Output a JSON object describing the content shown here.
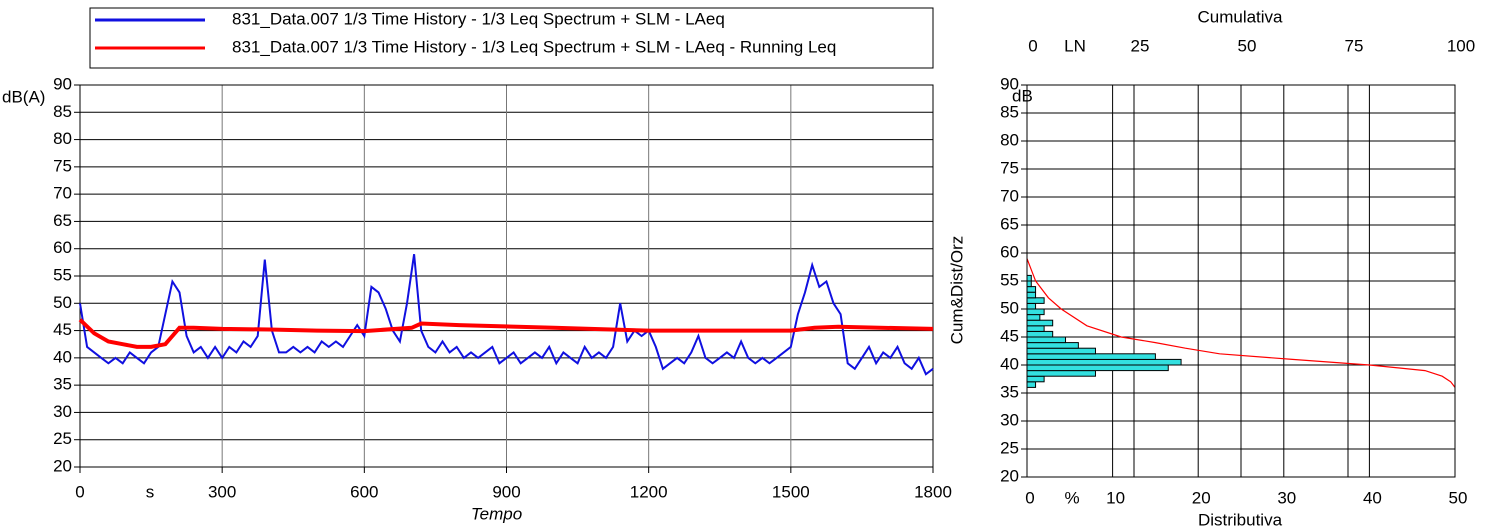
{
  "chart_data": [
    {
      "type": "line",
      "x_label": "Tempo",
      "x_unit": "s",
      "y_unit": "dB(A)",
      "xlim": [
        0,
        1800
      ],
      "xticks": [
        0,
        300,
        600,
        900,
        1200,
        1500,
        1800
      ],
      "ylim": [
        20,
        90
      ],
      "yticks": [
        20,
        25,
        30,
        35,
        40,
        45,
        50,
        55,
        60,
        65,
        70,
        75,
        80,
        85,
        90
      ],
      "grid": true,
      "series": [
        {
          "name": "831_Data.007 1/3 Time History - 1/3 Leq Spectrum + SLM - LAeq",
          "color": "#1010e0",
          "x": [
            0,
            15,
            30,
            45,
            60,
            75,
            90,
            105,
            120,
            135,
            150,
            165,
            180,
            195,
            210,
            225,
            240,
            255,
            270,
            285,
            300,
            315,
            330,
            345,
            360,
            375,
            390,
            405,
            420,
            435,
            450,
            465,
            480,
            495,
            510,
            525,
            540,
            555,
            570,
            585,
            600,
            615,
            630,
            645,
            660,
            675,
            690,
            705,
            720,
            735,
            750,
            765,
            780,
            795,
            810,
            825,
            840,
            855,
            870,
            885,
            900,
            915,
            930,
            945,
            960,
            975,
            990,
            1005,
            1020,
            1035,
            1050,
            1065,
            1080,
            1095,
            1110,
            1125,
            1140,
            1155,
            1170,
            1185,
            1200,
            1215,
            1230,
            1245,
            1260,
            1275,
            1290,
            1305,
            1320,
            1335,
            1350,
            1365,
            1380,
            1395,
            1410,
            1425,
            1440,
            1455,
            1470,
            1485,
            1500,
            1515,
            1530,
            1545,
            1560,
            1575,
            1590,
            1605,
            1620,
            1635,
            1650,
            1665,
            1680,
            1695,
            1710,
            1725,
            1740,
            1755,
            1770,
            1785,
            1800
          ],
          "values": [
            50,
            42,
            41,
            40,
            39,
            40,
            39,
            41,
            40,
            39,
            41,
            42,
            48,
            54,
            52,
            44,
            41,
            42,
            40,
            42,
            40,
            42,
            41,
            43,
            42,
            44,
            58,
            45,
            41,
            41,
            42,
            41,
            42,
            41,
            43,
            42,
            43,
            42,
            44,
            46,
            44,
            53,
            52,
            49,
            45,
            43,
            50,
            59,
            45,
            42,
            41,
            43,
            41,
            42,
            40,
            41,
            40,
            41,
            42,
            39,
            40,
            41,
            39,
            40,
            41,
            40,
            42,
            39,
            41,
            40,
            39,
            42,
            40,
            41,
            40,
            42,
            50,
            43,
            45,
            44,
            45,
            42,
            38,
            39,
            40,
            39,
            41,
            44,
            40,
            39,
            40,
            41,
            40,
            43,
            40,
            39,
            40,
            39,
            40,
            41,
            42,
            48,
            52,
            57,
            53,
            54,
            50,
            48,
            39,
            38,
            40,
            42,
            39,
            41,
            40,
            42,
            39,
            38,
            40,
            37,
            38
          ]
        },
        {
          "name": "831_Data.007 1/3 Time History - 1/3 Leq Spectrum + SLM - LAeq - Running Leq",
          "color": "#ff0000",
          "x": [
            0,
            30,
            60,
            90,
            120,
            150,
            180,
            195,
            210,
            240,
            300,
            400,
            500,
            600,
            700,
            720,
            800,
            1000,
            1200,
            1400,
            1500,
            1550,
            1600,
            1800
          ],
          "values": [
            47,
            44.5,
            43,
            42.5,
            42,
            42,
            42.5,
            44,
            45.5,
            45.5,
            45.3,
            45.2,
            45,
            44.9,
            45.5,
            46.3,
            46,
            45.5,
            45,
            45,
            45,
            45.5,
            45.7,
            45.3
          ]
        }
      ]
    },
    {
      "type": "histogram",
      "x_label": "Distributiva",
      "x_unit": "%",
      "y_label": "Cum&Dist/Orz",
      "y_unit": "dB",
      "x2_label": "Cumulativa",
      "x2_unit": "LN",
      "xlim": [
        0,
        50
      ],
      "xticks": [
        0,
        10,
        20,
        30,
        40,
        50
      ],
      "x2lim": [
        0,
        100
      ],
      "x2ticks": [
        0,
        25,
        50,
        75,
        100
      ],
      "ylim": [
        20,
        90
      ],
      "yticks": [
        20,
        25,
        30,
        35,
        40,
        45,
        50,
        55,
        60,
        65,
        70,
        75,
        80,
        85,
        90
      ],
      "grid": true,
      "color": "#33e0e0",
      "bins": [
        36,
        37,
        38,
        39,
        40,
        41,
        42,
        43,
        44,
        45,
        46,
        47,
        48,
        49,
        50,
        51,
        52,
        53,
        54,
        55,
        56
      ],
      "counts": [
        1,
        2,
        8,
        16.5,
        18,
        15,
        8,
        6,
        4.5,
        3,
        2,
        3,
        1.5,
        2,
        1,
        2,
        1,
        1,
        0.5,
        0.5
      ],
      "cumulative": {
        "color": "#ff0000",
        "y": [
          59,
          57,
          55,
          52,
          50,
          47,
          45,
          44,
          43,
          42,
          41,
          40,
          39,
          38,
          37,
          36
        ],
        "values": [
          0,
          1,
          2,
          5,
          8,
          14,
          22,
          30,
          37,
          45,
          62,
          80,
          93,
          97,
          99,
          100
        ]
      }
    }
  ]
}
